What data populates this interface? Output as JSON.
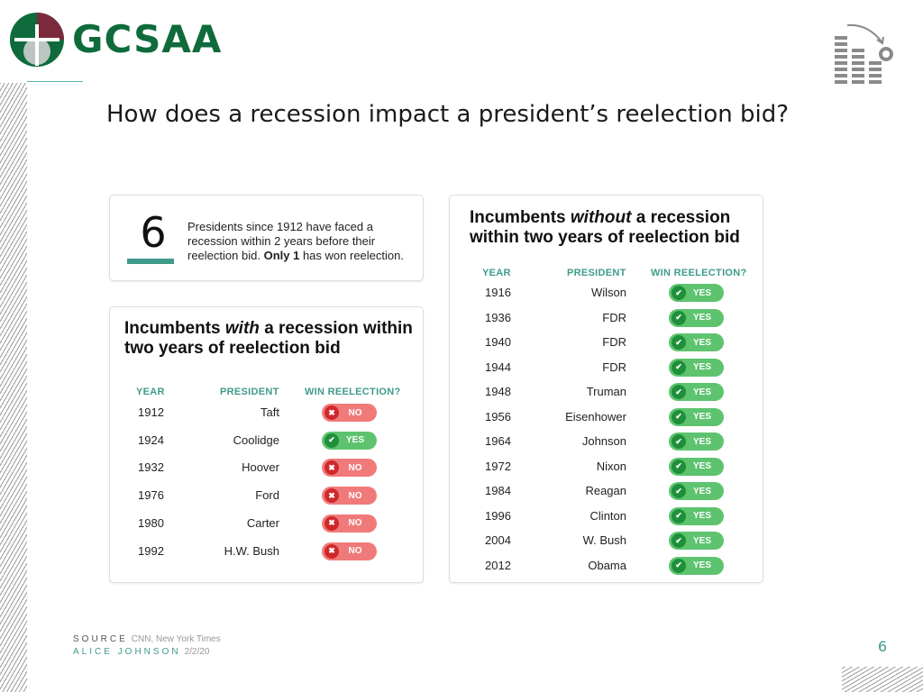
{
  "brand": {
    "name": "GCSAA"
  },
  "slide_title": "How does a recession impact a president’s reelection bid?",
  "stat": {
    "number": "6",
    "text_main": "Presidents since 1912 have faced a recession within 2 years before their reelection bid.",
    "text_bold": "Only 1",
    "text_tail": "has won reelection."
  },
  "with_recession": {
    "title_pre": "Incumbents",
    "title_em": "with",
    "title_post": "a recession within two years of reelection bid",
    "columns": [
      "YEAR",
      "PRESIDENT",
      "WIN REELECTION?"
    ],
    "rows": [
      {
        "year": "1912",
        "president": "Taft",
        "win": "NO"
      },
      {
        "year": "1924",
        "president": "Coolidge",
        "win": "YES"
      },
      {
        "year": "1932",
        "president": "Hoover",
        "win": "NO"
      },
      {
        "year": "1976",
        "president": "Ford",
        "win": "NO"
      },
      {
        "year": "1980",
        "president": "Carter",
        "win": "NO"
      },
      {
        "year": "1992",
        "president": "H.W. Bush",
        "win": "NO"
      }
    ]
  },
  "without_recession": {
    "title_pre": "Incumbents",
    "title_em": "without",
    "title_post": "a recession within two years of reelection bid",
    "columns": [
      "YEAR",
      "PRESIDENT",
      "WIN REELECTION?"
    ],
    "rows": [
      {
        "year": "1916",
        "president": "Wilson",
        "win": "YES"
      },
      {
        "year": "1936",
        "president": "FDR",
        "win": "YES"
      },
      {
        "year": "1940",
        "president": "FDR",
        "win": "YES"
      },
      {
        "year": "1944",
        "president": "FDR",
        "win": "YES"
      },
      {
        "year": "1948",
        "president": "Truman",
        "win": "YES"
      },
      {
        "year": "1956",
        "president": "Eisenhower",
        "win": "YES"
      },
      {
        "year": "1964",
        "president": "Johnson",
        "win": "YES"
      },
      {
        "year": "1972",
        "president": "Nixon",
        "win": "YES"
      },
      {
        "year": "1984",
        "president": "Reagan",
        "win": "YES"
      },
      {
        "year": "1996",
        "president": "Clinton",
        "win": "YES"
      },
      {
        "year": "2004",
        "president": "W. Bush",
        "win": "YES"
      },
      {
        "year": "2012",
        "president": "Obama",
        "win": "YES"
      }
    ]
  },
  "footer": {
    "source_label": "SOURCE",
    "source_value": "CNN, New York Times",
    "author_label": "ALICE JOHNSON",
    "date": "2/2/20"
  },
  "page_number": "6",
  "colors": {
    "brand_green": "#0f6b3b",
    "brand_maroon": "#7a2a3a",
    "accent_teal": "#3f9b8a",
    "yes_green": "#5ec36f",
    "no_red": "#f07a7a"
  },
  "icons": {
    "yes": "check-icon",
    "no": "x-icon",
    "corner": "declining-bar-chart-icon"
  }
}
